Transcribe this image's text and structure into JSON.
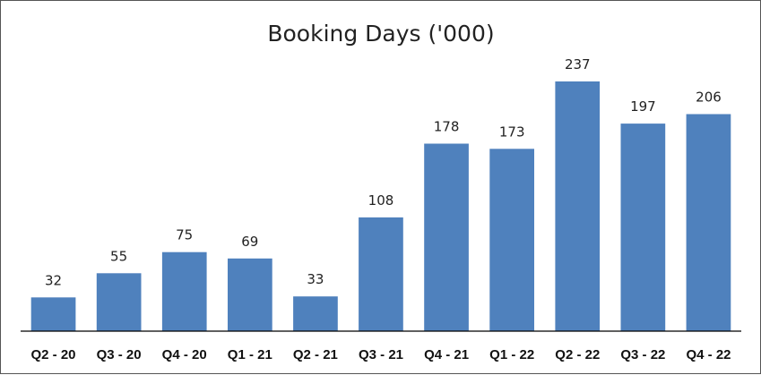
{
  "chart_data": {
    "type": "bar",
    "title": "Booking Days ('000)",
    "xlabel": "",
    "ylabel": "",
    "categories": [
      "Q2 - 20",
      "Q3 - 20",
      "Q4 - 20",
      "Q1 - 21",
      "Q2 - 21",
      "Q3 - 21",
      "Q4 - 21",
      "Q1 - 22",
      "Q2 - 22",
      "Q3 - 22",
      "Q4 - 22"
    ],
    "values": [
      32,
      55,
      75,
      69,
      33,
      108,
      178,
      173,
      237,
      197,
      206
    ],
    "ylim": [
      0,
      260
    ],
    "grid": false,
    "legend": "none",
    "data_labels": true,
    "colors": {
      "bar": "#4F81BD",
      "axis": "#000000",
      "border": "#555555"
    }
  }
}
